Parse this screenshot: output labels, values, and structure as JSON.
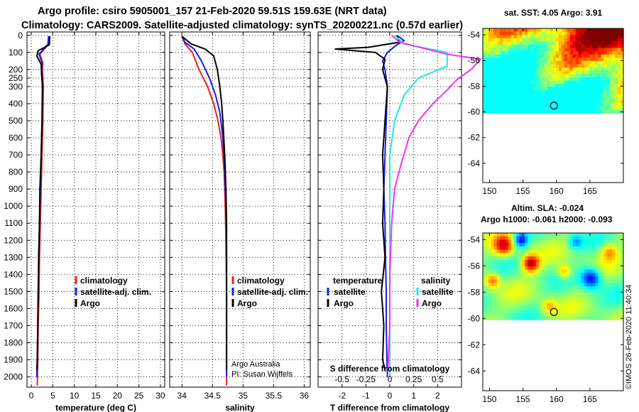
{
  "titles": {
    "line1": "Argo profile: csiro 5905001_157 21-Feb-2020 59.51S 159.63E (NRT data)",
    "line2": "Climatology: CARS2009. Satellite-adjusted climatology: synTS_20200221.nc (0.57d earlier)"
  },
  "depth_ticks": [
    0,
    100,
    200,
    250,
    300,
    400,
    500,
    600,
    700,
    800,
    900,
    1000,
    1100,
    1200,
    1300,
    1400,
    1500,
    1600,
    1700,
    1800,
    1900,
    2000
  ],
  "colors": {
    "climatology": "#e8231b",
    "satellite": "#1b1be6",
    "argo": "#000000",
    "sal_satellite": "#22e6e6",
    "sal_argo": "#ee33ee"
  },
  "chart_data": [
    {
      "type": "line",
      "name": "temperature-profile",
      "xlabel": "temperature (deg C)",
      "ylabel": "depth",
      "xlim": [
        -1,
        31
      ],
      "ylim": [
        2060,
        -20
      ],
      "x_ticks": [
        0,
        5,
        10,
        15,
        20,
        25,
        30
      ],
      "legend": {
        "position": "lower-right",
        "entries": [
          "climatology",
          "satellite-adj. clim.",
          "Argo"
        ]
      },
      "series": [
        {
          "name": "climatology",
          "color_key": "climatology",
          "points": [
            [
              4.2,
              5
            ],
            [
              4.1,
              50
            ],
            [
              2.0,
              110
            ],
            [
              2.7,
              160
            ],
            [
              2.6,
              200
            ],
            [
              2.8,
              300
            ],
            [
              2.7,
              500
            ],
            [
              2.5,
              700
            ],
            [
              2.3,
              900
            ],
            [
              2.1,
              1100
            ],
            [
              1.9,
              1300
            ],
            [
              1.8,
              1500
            ],
            [
              1.6,
              1700
            ],
            [
              1.5,
              1900
            ],
            [
              1.4,
              2050
            ]
          ]
        },
        {
          "name": "satellite-adj. clim.",
          "color_key": "satellite",
          "points": [
            [
              4.0,
              5
            ],
            [
              3.9,
              50
            ],
            [
              1.8,
              110
            ],
            [
              2.5,
              160
            ],
            [
              2.4,
              200
            ],
            [
              2.6,
              300
            ],
            [
              2.5,
              500
            ],
            [
              2.3,
              700
            ],
            [
              2.1,
              900
            ],
            [
              1.9,
              1100
            ],
            [
              1.8,
              1300
            ],
            [
              1.6,
              1500
            ],
            [
              1.5,
              1700
            ],
            [
              1.4,
              1900
            ],
            [
              1.3,
              2000
            ]
          ]
        },
        {
          "name": "Argo",
          "color_key": "argo",
          "points": [
            [
              4.3,
              5
            ],
            [
              4.2,
              55
            ],
            [
              1.6,
              90
            ],
            [
              1.3,
              120
            ],
            [
              2.3,
              170
            ],
            [
              2.4,
              230
            ],
            [
              2.6,
              300
            ],
            [
              2.5,
              500
            ],
            [
              2.3,
              700
            ],
            [
              2.0,
              900
            ],
            [
              1.9,
              1100
            ],
            [
              1.7,
              1300
            ],
            [
              1.6,
              1500
            ],
            [
              1.5,
              1700
            ],
            [
              1.4,
              1900
            ],
            [
              1.3,
              1960
            ]
          ]
        }
      ]
    },
    {
      "type": "line",
      "name": "salinity-profile",
      "xlabel": "salinity",
      "ylabel": "depth",
      "xlim": [
        33.8,
        36.1
      ],
      "ylim": [
        2060,
        -20
      ],
      "x_ticks": [
        34,
        34.5,
        35,
        35.5,
        36
      ],
      "legend": {
        "position": "lower-right",
        "entries": [
          "climatology",
          "satellite-adj. clim.",
          "Argo"
        ]
      },
      "annotation": [
        "Argo Australia",
        "PI: Susan Wijffels"
      ],
      "series": [
        {
          "name": "climatology",
          "color_key": "climatology",
          "points": [
            [
              34.0,
              5
            ],
            [
              34.05,
              50
            ],
            [
              34.17,
              100
            ],
            [
              34.28,
              200
            ],
            [
              34.42,
              300
            ],
            [
              34.52,
              400
            ],
            [
              34.59,
              500
            ],
            [
              34.64,
              600
            ],
            [
              34.67,
              700
            ],
            [
              34.69,
              800
            ],
            [
              34.71,
              1000
            ],
            [
              34.72,
              1200
            ],
            [
              34.73,
              1500
            ],
            [
              34.73,
              2000
            ],
            [
              34.73,
              2050
            ]
          ]
        },
        {
          "name": "satellite-adj. clim.",
          "color_key": "satellite",
          "points": [
            [
              34.0,
              5
            ],
            [
              34.05,
              40
            ],
            [
              34.2,
              80
            ],
            [
              34.32,
              150
            ],
            [
              34.45,
              250
            ],
            [
              34.55,
              350
            ],
            [
              34.62,
              450
            ],
            [
              34.67,
              600
            ],
            [
              34.7,
              800
            ],
            [
              34.72,
              1000
            ],
            [
              34.73,
              1300
            ],
            [
              34.73,
              1600
            ],
            [
              34.73,
              2000
            ]
          ]
        },
        {
          "name": "Argo",
          "color_key": "argo",
          "points": [
            [
              34.0,
              5
            ],
            [
              34.15,
              50
            ],
            [
              34.38,
              80
            ],
            [
              34.52,
              120
            ],
            [
              34.58,
              200
            ],
            [
              34.62,
              300
            ],
            [
              34.65,
              400
            ],
            [
              34.67,
              500
            ],
            [
              34.7,
              700
            ],
            [
              34.72,
              900
            ],
            [
              34.73,
              1100
            ],
            [
              34.73,
              1400
            ],
            [
              34.73,
              1700
            ],
            [
              34.73,
              1960
            ]
          ]
        }
      ]
    },
    {
      "type": "line",
      "name": "difference-profile",
      "xlabel": "T difference from climatology",
      "xlabel_top": "S difference from climatology",
      "ylabel": "depth",
      "xlim": [
        -3,
        3
      ],
      "ylim": [
        2060,
        -20
      ],
      "x_ticks": [
        -2,
        -1,
        0,
        1,
        2
      ],
      "x_ticks_s": [
        "-0.5",
        "-0.25",
        "0",
        "0.25",
        "0.5"
      ],
      "legend": {
        "position": "lower",
        "temperature_title": "temperature",
        "salinity_title": "salinity",
        "entries": [
          "satellite",
          "Argo",
          "satellite",
          "Argo"
        ]
      },
      "series": [
        {
          "name": "temperature satellite",
          "color_key": "satellite",
          "points": [
            [
              0.3,
              0
            ],
            [
              0.6,
              30
            ],
            [
              0.3,
              55
            ],
            [
              -0.1,
              100
            ],
            [
              -0.3,
              150
            ],
            [
              -0.2,
              200
            ],
            [
              -0.1,
              300
            ],
            [
              -0.15,
              500
            ],
            [
              -0.2,
              700
            ],
            [
              -0.25,
              900
            ],
            [
              -0.2,
              1100
            ],
            [
              -0.18,
              1300
            ],
            [
              -0.15,
              1500
            ],
            [
              -0.15,
              1700
            ],
            [
              -0.12,
              1900
            ],
            [
              -0.1,
              2000
            ]
          ]
        },
        {
          "name": "temperature Argo",
          "color_key": "argo",
          "points": [
            [
              0.3,
              0
            ],
            [
              0.4,
              40
            ],
            [
              -0.9,
              70
            ],
            [
              -2.3,
              80
            ],
            [
              -0.6,
              100
            ],
            [
              -0.2,
              140
            ],
            [
              -0.3,
              200
            ],
            [
              -0.1,
              300
            ],
            [
              -0.2,
              500
            ],
            [
              -0.3,
              700
            ],
            [
              -0.25,
              900
            ],
            [
              -0.3,
              1100
            ],
            [
              -0.2,
              1300
            ],
            [
              -0.35,
              1500
            ],
            [
              -0.25,
              1700
            ],
            [
              -0.3,
              1900
            ],
            [
              -0.2,
              1960
            ]
          ]
        },
        {
          "name": "salinity satellite",
          "color_key": "sal_satellite",
          "points": [
            [
              0.05,
              0
            ],
            [
              0.15,
              50
            ],
            [
              0.6,
              100
            ],
            [
              0.6,
              180
            ],
            [
              0.3,
              250
            ],
            [
              0.15,
              350
            ],
            [
              0.05,
              500
            ],
            [
              0.0,
              700
            ],
            [
              0.0,
              900
            ],
            [
              0.0,
              1200
            ],
            [
              0.0,
              1500
            ],
            [
              0.0,
              1800
            ],
            [
              0.0,
              2000
            ]
          ]
        },
        {
          "name": "salinity Argo",
          "color_key": "sal_argo",
          "points": [
            [
              0.02,
              0
            ],
            [
              0.1,
              40
            ],
            [
              0.6,
              110
            ],
            [
              0.95,
              140
            ],
            [
              0.85,
              200
            ],
            [
              0.7,
              260
            ],
            [
              0.6,
              320
            ],
            [
              0.45,
              400
            ],
            [
              0.3,
              500
            ],
            [
              0.2,
              600
            ],
            [
              0.12,
              750
            ],
            [
              0.05,
              900
            ],
            [
              0.02,
              1100
            ],
            [
              0.0,
              1400
            ],
            [
              0.0,
              1700
            ],
            [
              -0.02,
              1960
            ]
          ]
        }
      ]
    },
    {
      "type": "heatmap",
      "name": "sst-map",
      "title": "sat. SST: 4.05 Argo: 3.91",
      "x_ticks": [
        150,
        155,
        160,
        165
      ],
      "y_ticks": [
        -54,
        -56,
        -58,
        -60,
        -62,
        -64
      ],
      "xlim": [
        149,
        170
      ],
      "ylim": [
        -65.5,
        -53.5
      ],
      "data_ylim": [
        -60.1,
        -53.5
      ],
      "argo_position": [
        159.63,
        -59.51
      ],
      "colormap": "jet"
    },
    {
      "type": "heatmap",
      "name": "sla-map",
      "title": "Altim. SLA: -0.024",
      "subtitle": "Argo h1000: -0.061 h2000: -0.093",
      "x_ticks": [
        150,
        155,
        160,
        165
      ],
      "y_ticks": [
        -54,
        -56,
        -58,
        -60,
        -62,
        -64
      ],
      "xlim": [
        149,
        170
      ],
      "ylim": [
        -65.5,
        -53.5
      ],
      "data_ylim": [
        -60.1,
        -53.5
      ],
      "argo_position": [
        159.63,
        -59.51
      ],
      "colormap": "jet"
    }
  ],
  "credit": "©IMOS 26-Feb-2020 11:40:34"
}
